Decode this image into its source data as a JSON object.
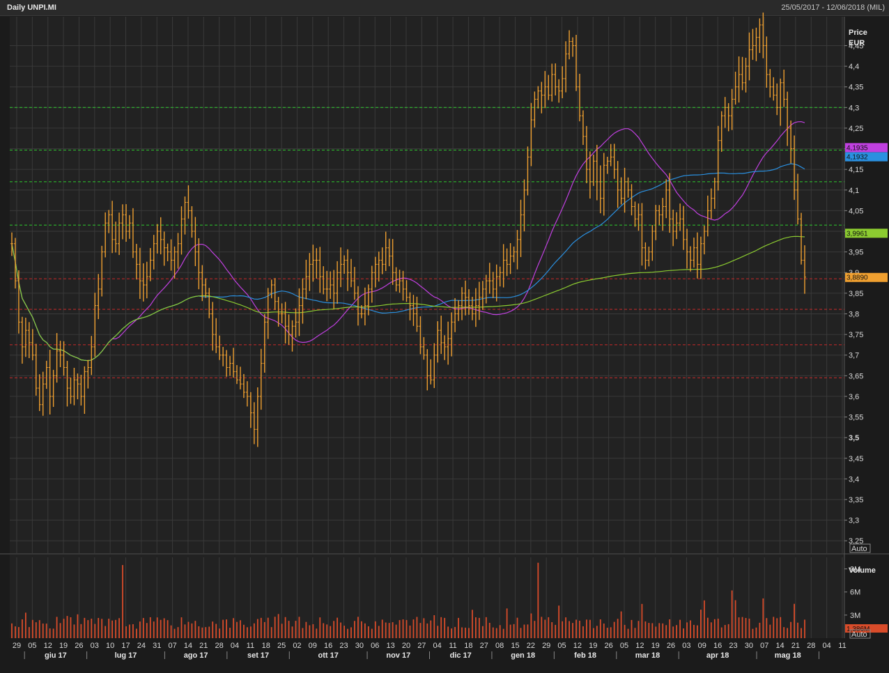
{
  "header": {
    "title": "Daily UNPI.MI",
    "range": "25/05/2017 - 12/06/2018 (MIL)"
  },
  "price_axis": {
    "header1": "Price",
    "header2": "EUR",
    "auto_label": "Auto"
  },
  "volume_axis": {
    "header": "Volume",
    "auto_label": "Auto"
  },
  "colors": {
    "background": "#222222",
    "bar": "#f0a030",
    "volume_bar": "#d94c2a",
    "ma_short": "#c040e0",
    "ma_medium": "#2a90e0",
    "ma_long": "#8ccc30",
    "green_level": "#2ecc2e",
    "red_level": "#cc2a2a",
    "grid": "#3a3a3a"
  },
  "chart_data": [
    {
      "type": "bar",
      "description_kind": "ohlc",
      "y_label": "Price EUR",
      "ylim": [
        3.22,
        4.52
      ],
      "y_ticks": [
        "4,45",
        "4,4",
        "4,35",
        "4,3",
        "4,25",
        "4,2",
        "4,15",
        "4,1",
        "4,05",
        "4",
        "3,95",
        "3,9",
        "3,85",
        "3,8",
        "3,75",
        "3,7",
        "3,65",
        "3,6",
        "3,55",
        "3,5",
        "3,45",
        "3,4",
        "3,35",
        "3,3",
        "3,25"
      ],
      "x_ticks_day": [
        "29",
        "05",
        "12",
        "19",
        "26",
        "03",
        "10",
        "17",
        "24",
        "31",
        "07",
        "14",
        "21",
        "28",
        "04",
        "11",
        "18",
        "25",
        "02",
        "09",
        "16",
        "23",
        "30",
        "06",
        "13",
        "20",
        "27",
        "04",
        "11",
        "18",
        "27",
        "08",
        "15",
        "22",
        "29",
        "05",
        "12",
        "19",
        "26",
        "05",
        "12",
        "19",
        "26",
        "03",
        "09",
        "16",
        "23",
        "30",
        "07",
        "14",
        "21",
        "28",
        "04",
        "11"
      ],
      "x_ticks_month": [
        "giu 17",
        "lug 17",
        "ago 17",
        "set 17",
        "ott 17",
        "nov 17",
        "dic 17",
        "gen 18",
        "feb 18",
        "mar 18",
        "apr 18",
        "mag 18"
      ],
      "grid": true,
      "horizontal_levels": {
        "green": [
          4.3,
          4.197,
          4.12,
          4.015
        ],
        "red": [
          3.885,
          3.811,
          3.725,
          3.645
        ]
      },
      "price_tags": [
        {
          "label": "4,1935",
          "value": 4.1935,
          "color": "#c040e0"
        },
        {
          "label": "4,1932",
          "value": 4.1932,
          "color": "#2a90e0"
        },
        {
          "label": "3,9961",
          "value": 3.9961,
          "color": "#8ccc30"
        },
        {
          "label": "3,8890",
          "value": 3.889,
          "color": "#f0a030"
        }
      ],
      "close_series": [
        3.97,
        3.88,
        3.78,
        3.72,
        3.76,
        3.73,
        3.7,
        3.62,
        3.58,
        3.63,
        3.67,
        3.6,
        3.65,
        3.71,
        3.7,
        3.67,
        3.62,
        3.6,
        3.64,
        3.63,
        3.6,
        3.66,
        3.67,
        3.72,
        3.82,
        3.86,
        3.95,
        4.02,
        4.04,
        3.98,
        3.97,
        4.02,
        4.04,
        4.0,
        4.02,
        3.95,
        3.92,
        3.88,
        3.87,
        3.89,
        3.93,
        3.97,
        4.0,
        3.98,
        3.96,
        3.95,
        3.93,
        3.95,
        3.97,
        4.03,
        4.07,
        4.05,
        4.0,
        3.95,
        3.9,
        3.87,
        3.85,
        3.8,
        3.75,
        3.72,
        3.7,
        3.7,
        3.67,
        3.68,
        3.66,
        3.64,
        3.63,
        3.61,
        3.6,
        3.56,
        3.52,
        3.6,
        3.68,
        3.78,
        3.85,
        3.87,
        3.83,
        3.8,
        3.8,
        3.77,
        3.75,
        3.77,
        3.78,
        3.82,
        3.86,
        3.89,
        3.92,
        3.93,
        3.93,
        3.89,
        3.86,
        3.86,
        3.87,
        3.85,
        3.9,
        3.92,
        3.93,
        3.9,
        3.88,
        3.85,
        3.8,
        3.8,
        3.82,
        3.86,
        3.9,
        3.92,
        3.93,
        3.92,
        3.96,
        3.94,
        3.9,
        3.87,
        3.88,
        3.86,
        3.84,
        3.82,
        3.8,
        3.77,
        3.72,
        3.7,
        3.65,
        3.64,
        3.7,
        3.76,
        3.73,
        3.72,
        3.74,
        3.78,
        3.8,
        3.82,
        3.85,
        3.84,
        3.82,
        3.8,
        3.82,
        3.84,
        3.86,
        3.88,
        3.88,
        3.86,
        3.89,
        3.9,
        3.93,
        3.92,
        3.94,
        3.95,
        3.98,
        4.04,
        4.1,
        4.18,
        4.27,
        4.32,
        4.34,
        4.33,
        4.35,
        4.33,
        4.38,
        4.35,
        4.34,
        4.37,
        4.43,
        4.46,
        4.45,
        4.35,
        4.28,
        4.23,
        4.15,
        4.12,
        4.17,
        4.12,
        4.08,
        4.16,
        4.17,
        4.18,
        4.15,
        4.1,
        4.08,
        4.12,
        4.1,
        4.06,
        4.03,
        4.04,
        3.96,
        3.93,
        3.95,
        4.0,
        4.05,
        4.04,
        4.06,
        4.1,
        4.03,
        4.0,
        4.02,
        4.03,
        3.98,
        3.95,
        3.93,
        3.96,
        3.92,
        3.97,
        4.0,
        4.05,
        4.08,
        4.12,
        4.22,
        4.28,
        4.3,
        4.28,
        4.32,
        4.35,
        4.38,
        4.36,
        4.4,
        4.44,
        4.45,
        4.47,
        4.5,
        4.45,
        4.38,
        4.35,
        4.33,
        4.3,
        4.36,
        4.32,
        4.25,
        4.2,
        4.1,
        4.03,
        3.93,
        3.889
      ]
    },
    {
      "type": "bar",
      "y_label": "Volume",
      "ylim": [
        0,
        10.5
      ],
      "y_ticks": [
        "9M",
        "6M",
        "3M"
      ],
      "last_label": "1,386M"
    }
  ]
}
